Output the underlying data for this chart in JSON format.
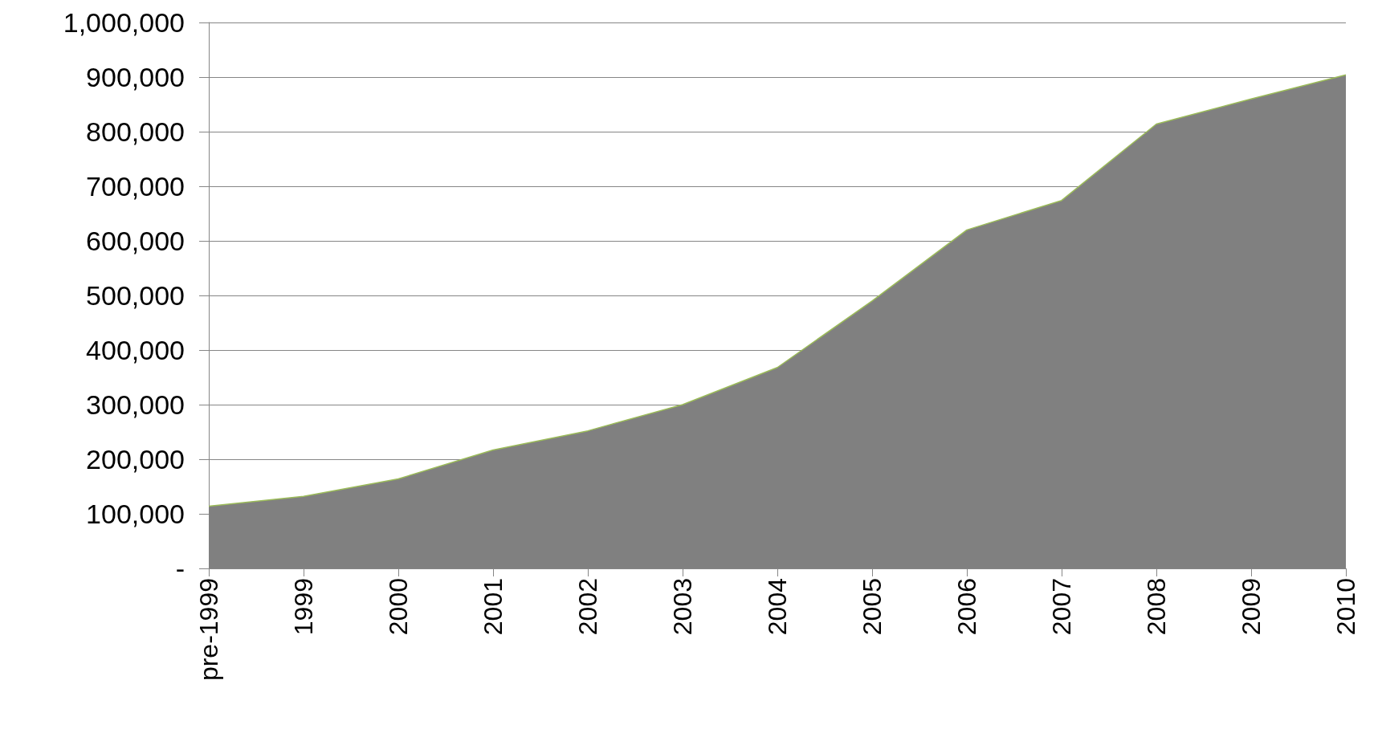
{
  "chart_data": {
    "type": "area",
    "categories": [
      "pre-1999",
      "1999",
      "2000",
      "2001",
      "2002",
      "2003",
      "2004",
      "2005",
      "2006",
      "2007",
      "2008",
      "2009",
      "2010"
    ],
    "series": [
      {
        "color": "#808080",
        "values": [
          114000,
          132000,
          164000,
          217000,
          252000,
          300000,
          368000,
          490000,
          620000,
          674000,
          814000,
          860000,
          904000
        ]
      }
    ],
    "ylim": [
      0,
      1000000
    ],
    "yticks": [
      {
        "value": 0,
        "label": "-"
      },
      {
        "value": 100000,
        "label": "100,000"
      },
      {
        "value": 200000,
        "label": "200,000"
      },
      {
        "value": 300000,
        "label": "300,000"
      },
      {
        "value": 400000,
        "label": "400,000"
      },
      {
        "value": 500000,
        "label": "500,000"
      },
      {
        "value": 600000,
        "label": "600,000"
      },
      {
        "value": 700000,
        "label": "700,000"
      },
      {
        "value": 800000,
        "label": "800,000"
      },
      {
        "value": 900000,
        "label": "900,000"
      },
      {
        "value": 1000000,
        "label": "1,000,000"
      }
    ],
    "grid": "y"
  }
}
